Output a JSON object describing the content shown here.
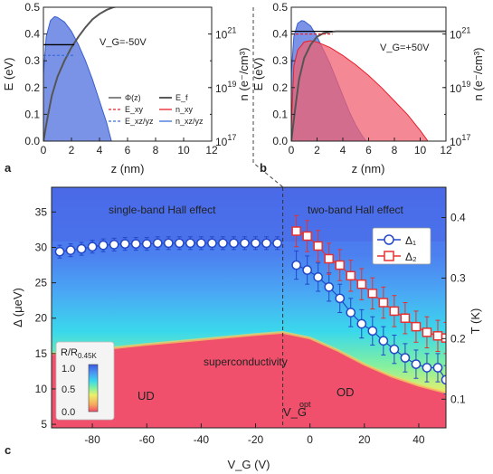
{
  "chart_data": [
    {
      "type": "line",
      "panel": "a",
      "xlabel": "z (nm)",
      "ylabel": "E (eV)",
      "ylabel_right": "n (e⁻/cm³)",
      "xlim": [
        0,
        12
      ],
      "ylim": [
        0,
        0.5
      ],
      "xticks": [
        0,
        2,
        4,
        6,
        8,
        10,
        12
      ],
      "yticks": [
        0.0,
        0.1,
        0.2,
        0.3,
        0.4,
        0.5
      ],
      "right_log_ticks": [
        {
          "base": "10",
          "exp": "17"
        },
        {
          "base": "10",
          "exp": "19"
        },
        {
          "base": "10",
          "exp": "21"
        }
      ],
      "right_log_range": [
        17,
        22
      ],
      "annotation": "V_G=-50V",
      "legend": [
        {
          "label": "Φ(z)",
          "style": "solid",
          "color": "#444444"
        },
        {
          "label": "E_f",
          "style": "solid",
          "color": "#000000"
        },
        {
          "label": "E_xy",
          "style": "dashed",
          "color": "#e8202a"
        },
        {
          "label": "n_xy",
          "style": "solid",
          "color": "#e8202a"
        },
        {
          "label": "E_xz/yz",
          "style": "dashed",
          "color": "#3a6fd8"
        },
        {
          "label": "n_xz/yz",
          "style": "solid",
          "color": "#3a6fd8"
        }
      ],
      "series": [
        {
          "name": "Φ(z)",
          "x": [
            0.0,
            0.3,
            0.6,
            1,
            1.5,
            2,
            2.5,
            3,
            3.5,
            4,
            4.5,
            5,
            5.5
          ],
          "values": [
            0.0,
            0.09,
            0.17,
            0.24,
            0.3,
            0.35,
            0.39,
            0.425,
            0.455,
            0.475,
            0.49,
            0.5,
            0.505
          ]
        },
        {
          "name": "E_f",
          "x": [
            0,
            2.2
          ],
          "values": [
            0.36,
            0.36
          ]
        },
        {
          "name": "E_xz/yz",
          "x": [
            0,
            2.2
          ],
          "values": [
            0.32,
            0.32
          ]
        },
        {
          "name": "n_xz/yz",
          "x": [
            0.0,
            0.2,
            0.5,
            0.8,
            1.0,
            1.5,
            2.0,
            2.5,
            3.0,
            3.5,
            4.0,
            4.5,
            4.85
          ],
          "values_log": [
            19.5,
            20.9,
            21.5,
            21.65,
            21.62,
            21.45,
            21.1,
            20.6,
            20.0,
            19.3,
            18.5,
            17.7,
            17.0
          ]
        }
      ]
    },
    {
      "type": "line",
      "panel": "b",
      "xlabel": "z (nm)",
      "ylabel": "E (eV)",
      "ylabel_right": "n (e⁻/cm³)",
      "xlim": [
        0,
        12
      ],
      "ylim": [
        0,
        0.5
      ],
      "xticks": [
        0,
        2,
        4,
        6,
        8,
        10,
        12
      ],
      "yticks": [
        0.0,
        0.1,
        0.2,
        0.3,
        0.4,
        0.5
      ],
      "right_log_ticks": [
        {
          "base": "10",
          "exp": "17"
        },
        {
          "base": "10",
          "exp": "19"
        },
        {
          "base": "10",
          "exp": "21"
        }
      ],
      "right_log_range": [
        17,
        22
      ],
      "annotation": "V_G=+50V",
      "series": [
        {
          "name": "Φ(z)",
          "x": [
            0.0,
            0.3,
            0.6,
            1,
            1.5,
            2,
            2.5,
            3,
            3.5,
            4,
            5,
            6,
            8,
            10,
            12
          ],
          "values": [
            0.0,
            0.12,
            0.23,
            0.31,
            0.36,
            0.39,
            0.403,
            0.408,
            0.41,
            0.41,
            0.41,
            0.41,
            0.41,
            0.41,
            0.41
          ]
        },
        {
          "name": "E_f",
          "x": [
            0,
            3.2
          ],
          "values": [
            0.41,
            0.41
          ]
        },
        {
          "name": "E_xy",
          "x": [
            0,
            3.2
          ],
          "values": [
            0.4,
            0.4
          ]
        },
        {
          "name": "n_xz/yz",
          "x": [
            0.0,
            0.2,
            0.5,
            0.8,
            1.0,
            1.5,
            2.0,
            2.5,
            3.0,
            3.5,
            4.0,
            4.5,
            5.0,
            5.5,
            5.8
          ],
          "values_log": [
            19.5,
            20.9,
            21.4,
            21.5,
            21.48,
            21.3,
            20.9,
            20.4,
            19.9,
            19.3,
            18.7,
            18.1,
            17.6,
            17.2,
            17.0
          ]
        },
        {
          "name": "n_xy",
          "x": [
            0.0,
            0.2,
            0.5,
            1.0,
            1.5,
            2.0,
            3.0,
            4.0,
            5.0,
            6.0,
            7.0,
            8.0,
            9.0,
            10.0,
            10.6
          ],
          "values_log": [
            17.5,
            19.8,
            20.4,
            20.7,
            20.75,
            20.7,
            20.5,
            20.2,
            19.85,
            19.45,
            19.0,
            18.5,
            18.0,
            17.4,
            17.0
          ]
        }
      ]
    },
    {
      "type": "heatmap",
      "panel": "c",
      "xlabel": "V_G (V)",
      "ylabel": "Δ (μeV)",
      "ylabel_right": "T (K)",
      "xlim": [
        -95,
        50
      ],
      "ylim": [
        4.5,
        38.5
      ],
      "xticks": [
        -80,
        -60,
        -40,
        -20,
        0,
        20,
        40
      ],
      "yticks": [
        5,
        10,
        15,
        20,
        25,
        30,
        35
      ],
      "right_ticks": [
        0.1,
        0.2,
        0.3,
        0.4
      ],
      "T_per_Delta": 0.01169,
      "colorbar": {
        "label": "R/R",
        "label_sub": "0.45K",
        "ticks": [
          "1.0",
          "0.5",
          "0.0"
        ]
      },
      "vline": {
        "x": -10,
        "label": "V_G",
        "label_sup": "opt"
      },
      "annotations": [
        {
          "text": "single-band Hall effect"
        },
        {
          "text": "two-band Hall effect"
        },
        {
          "text": "superconductivity"
        },
        {
          "text": "UD"
        },
        {
          "text": "OD"
        }
      ],
      "tc_boundary": {
        "x": [
          -95,
          -80,
          -60,
          -40,
          -20,
          -10,
          0,
          10,
          20,
          30,
          40,
          50
        ],
        "values": [
          15.0,
          15.5,
          16.3,
          17.0,
          17.7,
          18.0,
          17.2,
          15.5,
          13.5,
          11.8,
          10.5,
          9.5
        ]
      },
      "series": [
        {
          "name": "Δ₁",
          "marker": "circle",
          "color": "#2448c8",
          "x": [
            -92,
            -88,
            -84,
            -80,
            -76,
            -72,
            -68,
            -64,
            -60,
            -56,
            -52,
            -48,
            -44,
            -40,
            -36,
            -32,
            -28,
            -24,
            -20,
            -16,
            -12
          ],
          "values": [
            29.4,
            29.6,
            29.8,
            30.1,
            30.3,
            30.4,
            30.5,
            30.5,
            30.5,
            30.6,
            30.6,
            30.6,
            30.6,
            30.6,
            30.6,
            30.6,
            30.6,
            30.6,
            30.6,
            30.6,
            30.6
          ],
          "err": [
            0.9,
            0.9,
            0.9,
            0.9,
            0.9,
            0.9,
            0.9,
            0.9,
            0.9,
            0.9,
            0.9,
            0.9,
            0.9,
            0.9,
            0.9,
            0.9,
            0.9,
            0.9,
            0.9,
            0.9,
            0.9
          ]
        },
        {
          "name": "Δ₁",
          "marker": "circle",
          "color": "#2448c8",
          "x": [
            -5,
            -1,
            3,
            7,
            11,
            15,
            19,
            23,
            27,
            31,
            35,
            39,
            43,
            47,
            50
          ],
          "values": [
            27.5,
            26.8,
            25.8,
            24.4,
            22.8,
            20.8,
            19.2,
            18.2,
            16.8,
            15.6,
            14.4,
            13.5,
            13.0,
            13.0,
            11.3
          ],
          "err": [
            2.0,
            2.0,
            2.0,
            2.0,
            2.0,
            2.0,
            2.0,
            2.0,
            2.0,
            2.0,
            2.0,
            2.0,
            2.0,
            2.0,
            2.0
          ]
        },
        {
          "name": "Δ₂",
          "marker": "square",
          "color": "#e83030",
          "x": [
            -5,
            -1,
            3,
            7,
            11,
            15,
            19,
            23,
            27,
            31,
            35,
            39,
            43,
            47,
            50
          ],
          "values": [
            32.3,
            31.6,
            30.2,
            28.4,
            27.5,
            26.0,
            24.8,
            23.5,
            22.2,
            21.0,
            20.0,
            18.8,
            18.0,
            17.5,
            17.2
          ],
          "err": [
            2.2,
            2.2,
            2.2,
            2.2,
            2.2,
            2.2,
            2.2,
            2.2,
            2.2,
            2.2,
            2.2,
            2.2,
            2.2,
            2.2,
            2.2
          ]
        }
      ]
    }
  ],
  "colors": {
    "fill_blue": "#5a78e0",
    "fill_red": "#f06070",
    "heat_red": "#f0506c",
    "heat_blue": "#4c70ec",
    "phi": "#555555"
  }
}
